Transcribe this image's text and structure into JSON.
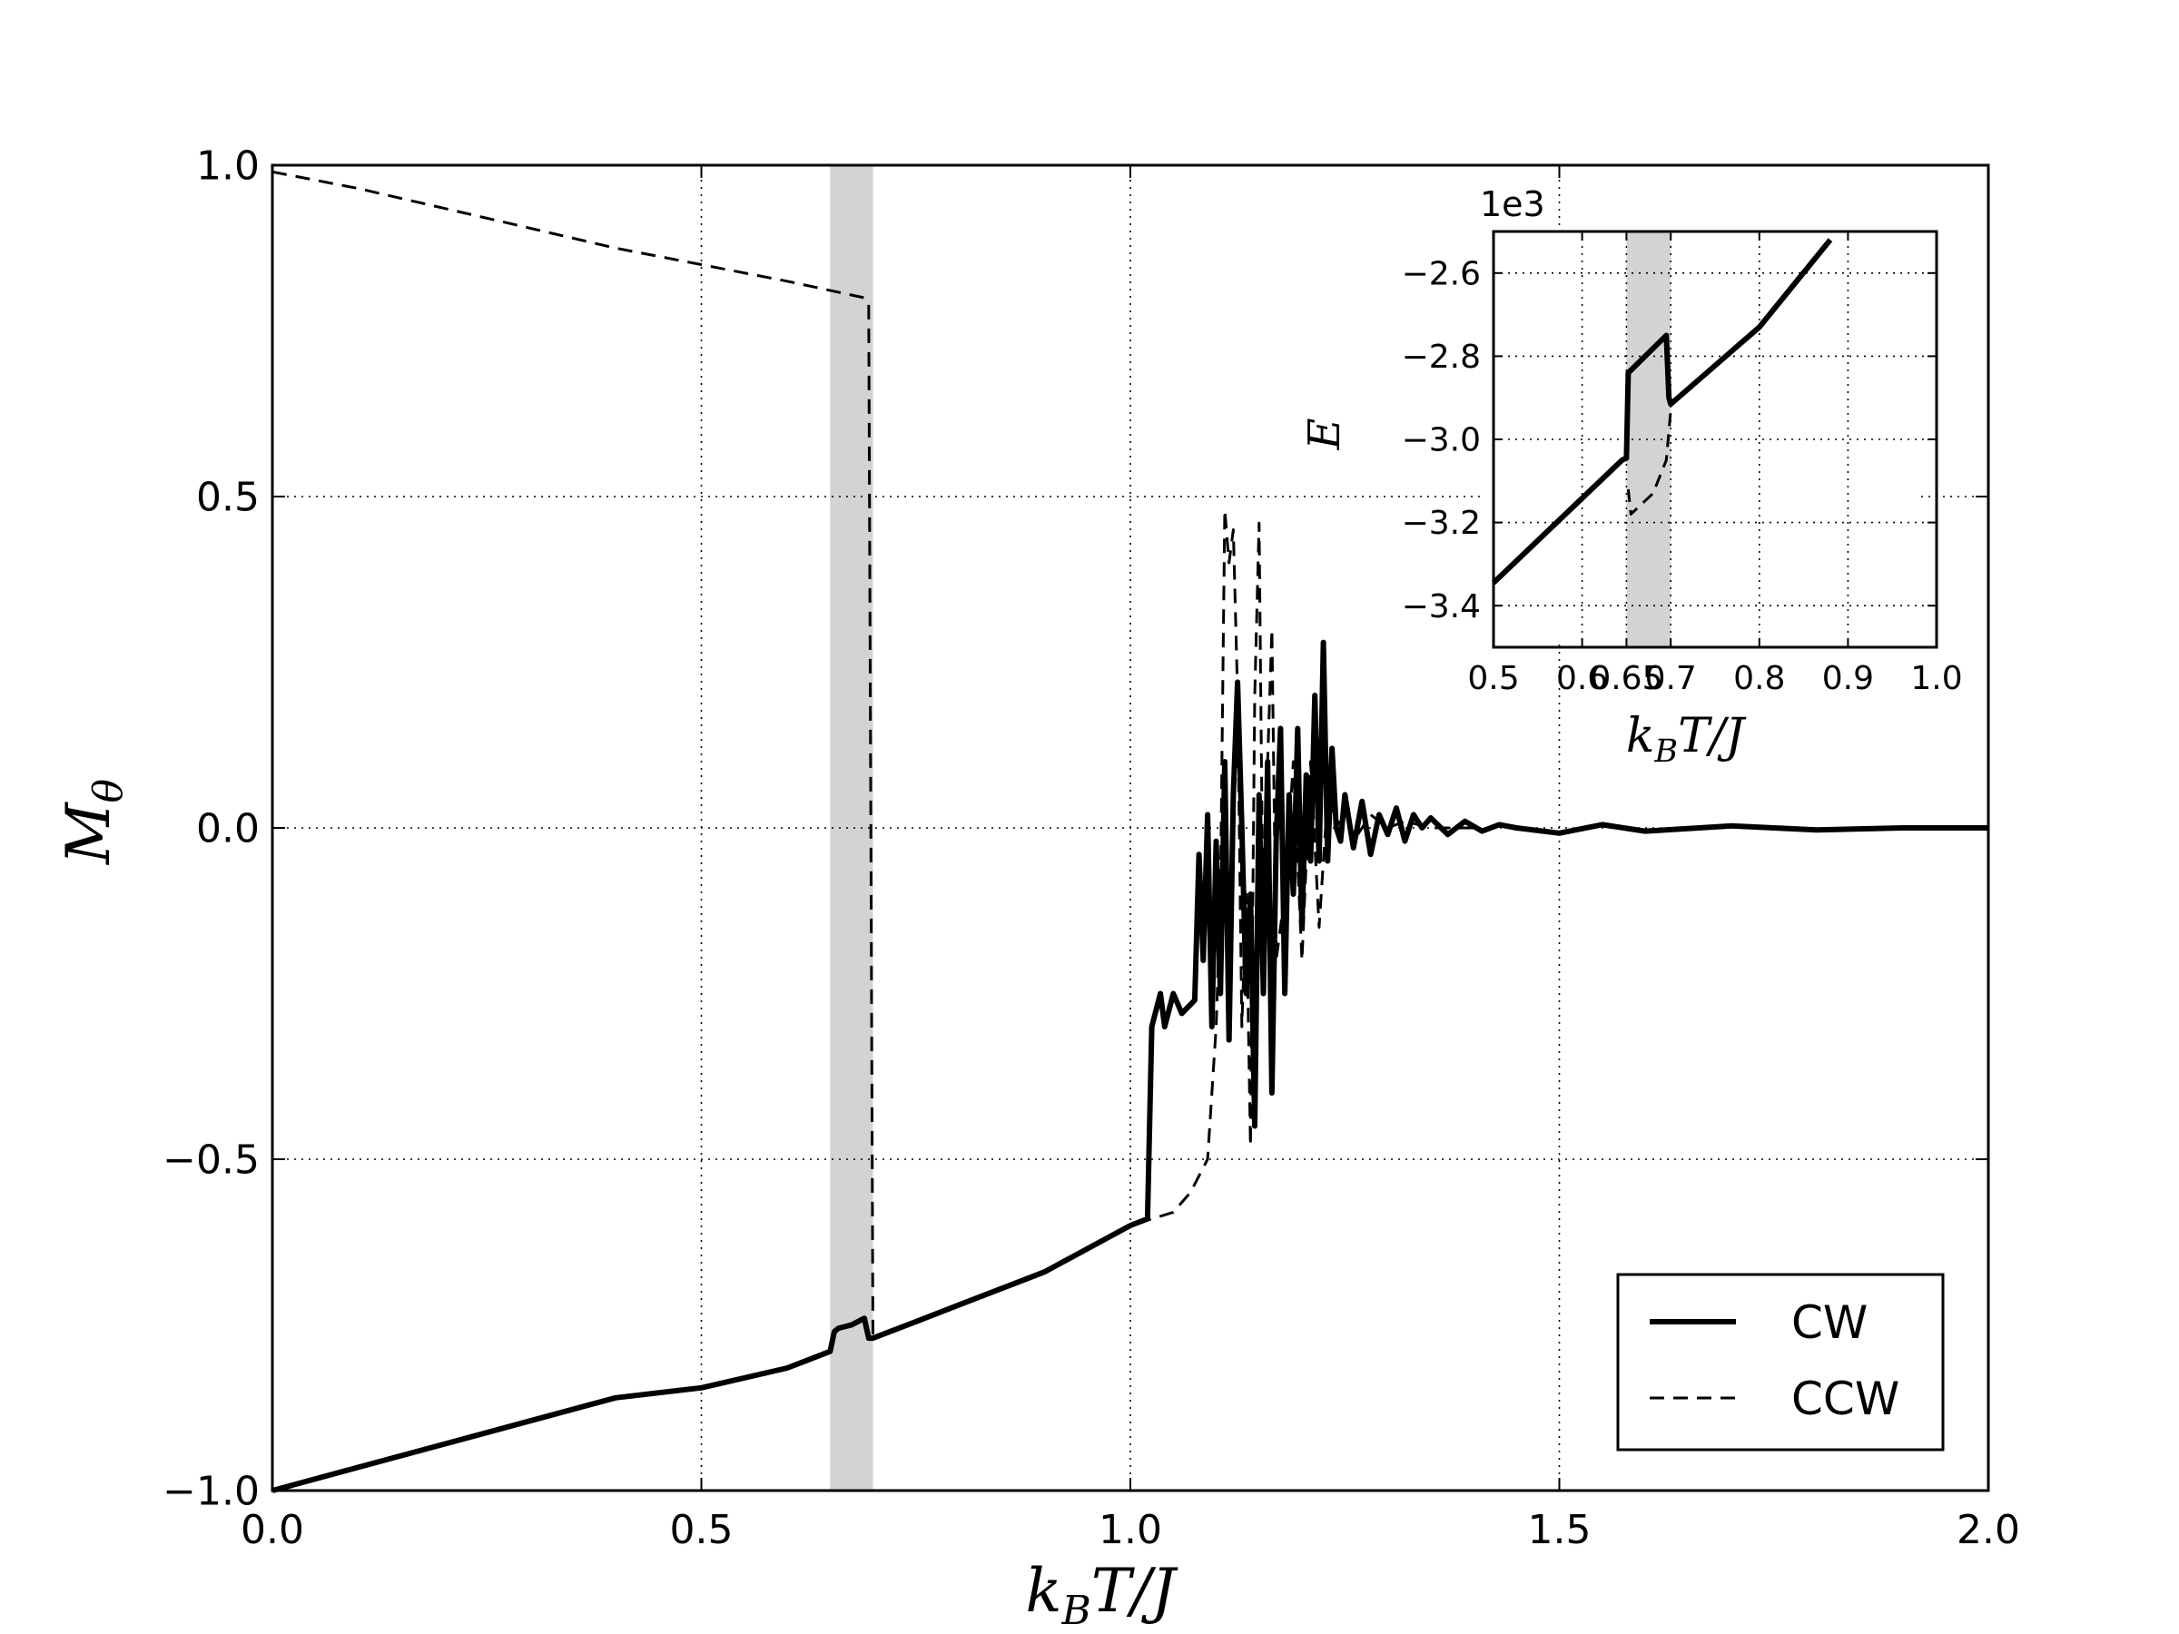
{
  "chart_data": [
    {
      "type": "line",
      "xlabel": "k_BT/J",
      "ylabel": "M_θ",
      "xlim": [
        0.0,
        2.0
      ],
      "ylim": [
        -1.0,
        1.0
      ],
      "xticks": [
        "0.0",
        "0.5",
        "1.0",
        "1.5",
        "2.0"
      ],
      "yticks": [
        "−1.0",
        "−0.5",
        "0.0",
        "0.5",
        "1.0"
      ],
      "grid": true,
      "legend_position": "bottom-right",
      "shaded_band": {
        "x0": 0.65,
        "x1": 0.7,
        "color": "#d3d3d3"
      },
      "series": [
        {
          "name": "CW",
          "style": "solid",
          "color": "#000000",
          "x": [
            0.0,
            0.1,
            0.2,
            0.3,
            0.4,
            0.5,
            0.6,
            0.65,
            0.655,
            0.66,
            0.675,
            0.69,
            0.695,
            0.7,
            0.75,
            0.8,
            0.9,
            1.0,
            1.02,
            1.025,
            1.035,
            1.04,
            1.05,
            1.06,
            1.075,
            1.08,
            1.085,
            1.09,
            1.095,
            1.1,
            1.105,
            1.11,
            1.115,
            1.12,
            1.125,
            1.13,
            1.135,
            1.14,
            1.145,
            1.15,
            1.155,
            1.16,
            1.165,
            1.17,
            1.175,
            1.18,
            1.185,
            1.19,
            1.195,
            1.2,
            1.205,
            1.21,
            1.215,
            1.22,
            1.225,
            1.23,
            1.235,
            1.24,
            1.245,
            1.25,
            1.26,
            1.27,
            1.28,
            1.29,
            1.3,
            1.31,
            1.32,
            1.33,
            1.34,
            1.35,
            1.37,
            1.39,
            1.41,
            1.43,
            1.45,
            1.5,
            1.55,
            1.6,
            1.7,
            1.8,
            1.9,
            2.0
          ],
          "y": [
            -1.0,
            -0.965,
            -0.93,
            -0.895,
            -0.86,
            -0.845,
            -0.815,
            -0.79,
            -0.76,
            -0.755,
            -0.75,
            -0.74,
            -0.77,
            -0.77,
            -0.745,
            -0.72,
            -0.67,
            -0.6,
            -0.59,
            -0.3,
            -0.25,
            -0.3,
            -0.25,
            -0.28,
            -0.26,
            -0.04,
            -0.2,
            0.02,
            -0.3,
            -0.02,
            -0.25,
            0.1,
            -0.32,
            0.05,
            0.22,
            0.0,
            -0.25,
            -0.1,
            -0.45,
            0.05,
            -0.25,
            0.1,
            -0.4,
            -0.02,
            0.15,
            -0.25,
            0.05,
            -0.1,
            0.15,
            -0.15,
            0.08,
            -0.05,
            0.2,
            -0.05,
            0.28,
            -0.05,
            0.12,
            0.0,
            -0.02,
            0.05,
            -0.03,
            0.04,
            -0.04,
            0.02,
            -0.01,
            0.03,
            -0.02,
            0.02,
            0.0,
            0.015,
            -0.01,
            0.01,
            -0.005,
            0.005,
            0.0,
            -0.008,
            0.005,
            -0.005,
            0.003,
            -0.003,
            0.0,
            0.0
          ]
        },
        {
          "name": "CCW",
          "style": "dashed",
          "color": "#000000",
          "x": [
            0.0,
            0.1,
            0.2,
            0.3,
            0.4,
            0.5,
            0.6,
            0.69,
            0.695,
            0.7,
            0.75,
            0.8,
            0.9,
            1.0,
            1.05,
            1.07,
            1.09,
            1.1,
            1.105,
            1.11,
            1.115,
            1.12,
            1.125,
            1.13,
            1.135,
            1.14,
            1.145,
            1.15,
            1.155,
            1.16,
            1.165,
            1.17,
            1.18,
            1.19,
            1.2,
            1.21,
            1.22,
            1.23,
            1.24,
            1.25,
            1.26,
            1.28,
            1.3,
            1.32,
            1.35,
            1.4
          ],
          "y": [
            0.99,
            0.965,
            0.935,
            0.905,
            0.875,
            0.85,
            0.825,
            0.8,
            0.79,
            -0.77,
            -0.745,
            -0.72,
            -0.67,
            -0.6,
            -0.58,
            -0.55,
            -0.5,
            -0.3,
            -0.1,
            0.48,
            0.4,
            0.45,
            0.2,
            -0.3,
            -0.1,
            -0.48,
            0.2,
            0.46,
            -0.2,
            0.1,
            0.3,
            -0.2,
            -0.1,
            0.1,
            -0.2,
            0.1,
            -0.15,
            0.05,
            0.0,
            0.03,
            -0.02,
            0.02,
            0.0,
            0.01,
            0.0,
            0.0
          ]
        }
      ]
    },
    {
      "type": "line",
      "xlabel": "k_BT/J",
      "ylabel": "E",
      "offset_text": "1e3",
      "xlim": [
        0.5,
        1.0
      ],
      "ylim": [
        -3.5,
        -2.5
      ],
      "xticks": [
        "0.5",
        "0.6",
        "0.65",
        "0.7",
        "0.8",
        "0.9",
        "1.0"
      ],
      "yticks": [
        "−3.4",
        "−3.2",
        "−3.0",
        "−2.8",
        "−2.6"
      ],
      "grid": true,
      "shaded_band": {
        "x0": 0.65,
        "x1": 0.7,
        "color": "#d3d3d3"
      },
      "series": [
        {
          "name": "CW",
          "style": "solid",
          "color": "#000000",
          "x": [
            0.5,
            0.645,
            0.65,
            0.652,
            0.695,
            0.698,
            0.7,
            0.8,
            0.88
          ],
          "y": [
            -3.345,
            -3.05,
            -3.045,
            -2.84,
            -2.75,
            -2.9,
            -2.915,
            -2.73,
            -2.52
          ]
        },
        {
          "name": "CCW",
          "style": "dashed",
          "color": "#000000",
          "x": [
            0.652,
            0.655,
            0.67,
            0.68,
            0.695,
            0.7
          ],
          "y": [
            -3.12,
            -3.18,
            -3.15,
            -3.13,
            -3.05,
            -2.93
          ]
        }
      ]
    }
  ]
}
